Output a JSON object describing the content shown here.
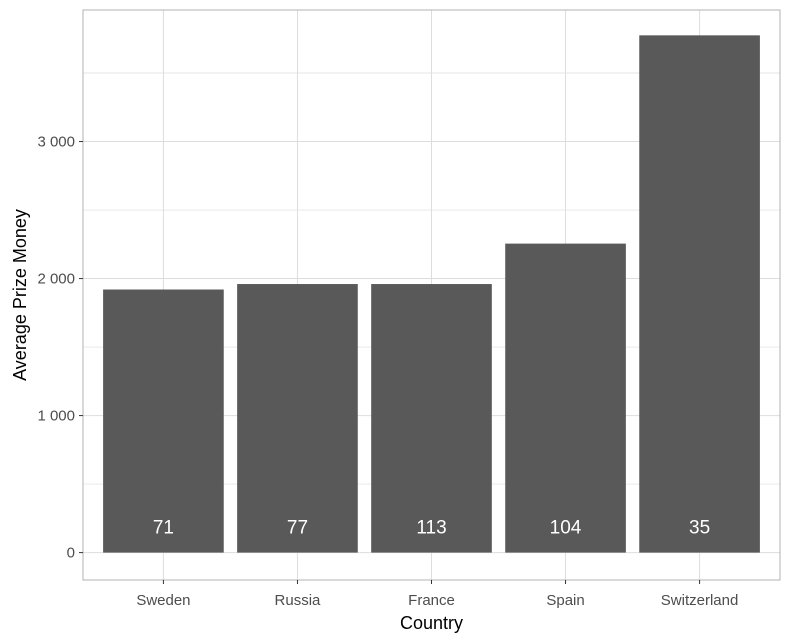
{
  "chart_data": {
    "type": "bar",
    "title": "",
    "xlabel": "Country",
    "ylabel": "Average Prize Money",
    "categories": [
      "Sweden",
      "Russia",
      "France",
      "Spain",
      "Switzerland"
    ],
    "values": [
      1920,
      1960,
      1960,
      2255,
      3775
    ],
    "bar_labels": [
      "71",
      "77",
      "113",
      "104",
      "35"
    ],
    "ylim": [
      -200,
      3960
    ],
    "y_ticks": [
      0,
      1000,
      2000,
      3000
    ],
    "y_tick_labels": [
      "0",
      "1 000",
      "2 000",
      "3 000"
    ],
    "grid": true,
    "bar_color": "#595959",
    "grid_color": "#dddddd",
    "panel_border_color": "#b3b3b3",
    "label_color": "#ffffff"
  }
}
